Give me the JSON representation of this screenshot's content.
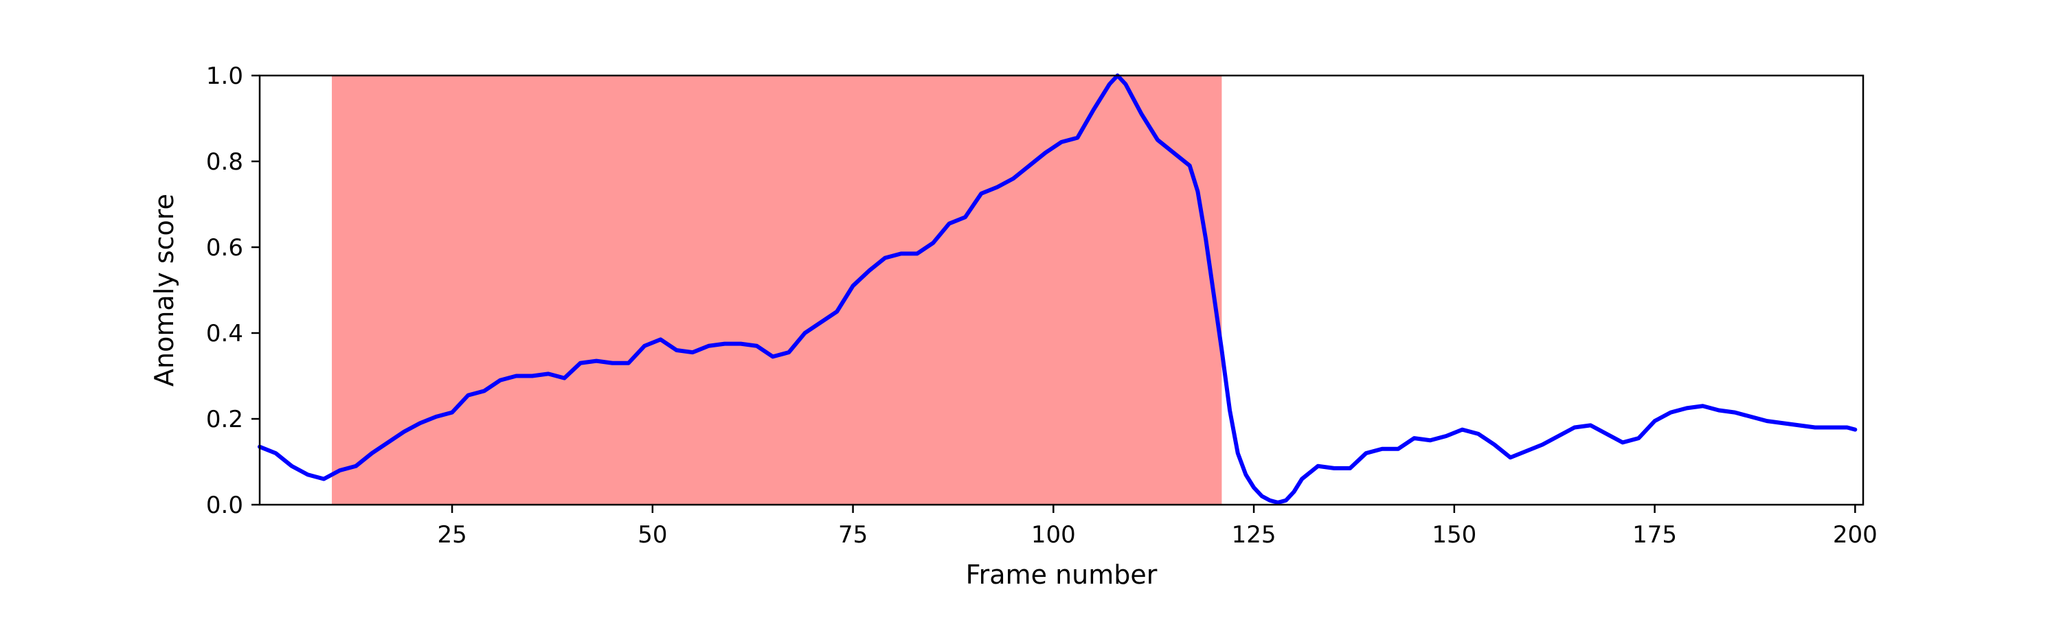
{
  "chart_data": {
    "type": "line",
    "title": "",
    "xlabel": "Frame number",
    "ylabel": "Anomaly score",
    "xlim": [
      1,
      201
    ],
    "ylim": [
      0,
      1
    ],
    "x_ticks": [
      25,
      50,
      75,
      100,
      125,
      150,
      175,
      200
    ],
    "y_ticks": [
      0.0,
      0.2,
      0.4,
      0.6,
      0.8,
      1.0
    ],
    "grid": false,
    "legend": "none",
    "colors": {
      "line": "#0000ff",
      "anomaly_region": "#ff9999",
      "axes": "#000000"
    },
    "anomaly_region": {
      "x_start": 10,
      "x_end": 121
    },
    "series": [
      {
        "x": [
          1,
          3,
          5,
          7,
          9,
          11,
          13,
          15,
          17,
          19,
          21,
          23,
          25,
          27,
          29,
          31,
          33,
          35,
          37,
          39,
          41,
          43,
          45,
          47,
          49,
          51,
          53,
          55,
          57,
          59,
          61,
          63,
          65,
          67,
          69,
          71,
          73,
          75,
          77,
          79,
          81,
          83,
          85,
          87,
          89,
          91,
          93,
          95,
          97,
          99,
          101,
          103,
          105,
          107,
          108,
          109,
          111,
          113,
          115,
          117,
          118,
          119,
          120,
          121,
          122,
          123,
          124,
          125,
          126,
          127,
          128,
          129,
          130,
          131,
          133,
          135,
          137,
          139,
          141,
          143,
          145,
          147,
          149,
          151,
          153,
          155,
          157,
          159,
          161,
          163,
          165,
          167,
          169,
          171,
          173,
          175,
          177,
          179,
          181,
          183,
          185,
          187,
          189,
          191,
          193,
          195,
          197,
          199,
          200
        ],
        "y": [
          0.135,
          0.12,
          0.09,
          0.07,
          0.06,
          0.08,
          0.09,
          0.12,
          0.145,
          0.17,
          0.19,
          0.205,
          0.215,
          0.255,
          0.265,
          0.29,
          0.3,
          0.3,
          0.305,
          0.295,
          0.33,
          0.335,
          0.33,
          0.33,
          0.37,
          0.385,
          0.36,
          0.355,
          0.37,
          0.375,
          0.375,
          0.37,
          0.345,
          0.355,
          0.4,
          0.425,
          0.45,
          0.51,
          0.545,
          0.575,
          0.585,
          0.585,
          0.61,
          0.655,
          0.67,
          0.725,
          0.74,
          0.76,
          0.79,
          0.82,
          0.845,
          0.855,
          0.92,
          0.98,
          1.0,
          0.98,
          0.91,
          0.85,
          0.82,
          0.79,
          0.73,
          0.62,
          0.49,
          0.36,
          0.22,
          0.12,
          0.07,
          0.04,
          0.02,
          0.01,
          0.005,
          0.01,
          0.03,
          0.06,
          0.09,
          0.085,
          0.085,
          0.12,
          0.13,
          0.13,
          0.155,
          0.15,
          0.16,
          0.175,
          0.165,
          0.14,
          0.11,
          0.125,
          0.14,
          0.16,
          0.18,
          0.185,
          0.165,
          0.145,
          0.155,
          0.195,
          0.215,
          0.225,
          0.23,
          0.22,
          0.215,
          0.205,
          0.195,
          0.19,
          0.185,
          0.18,
          0.18,
          0.18,
          0.175
        ]
      }
    ]
  }
}
